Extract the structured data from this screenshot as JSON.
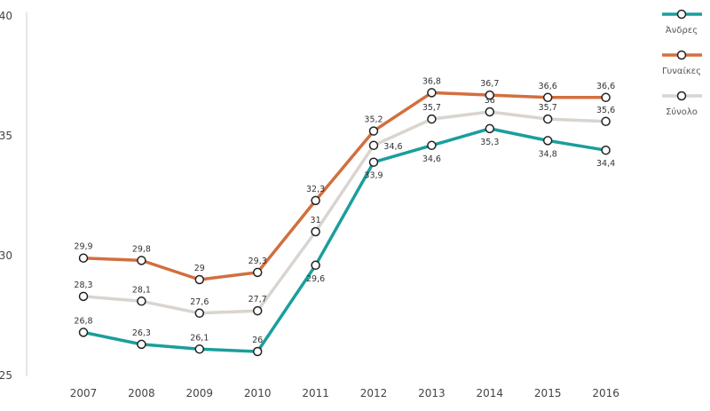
{
  "chart_data": {
    "type": "line",
    "categories": [
      "2007",
      "2008",
      "2009",
      "2010",
      "2011",
      "2012",
      "2013",
      "2014",
      "2015",
      "2016"
    ],
    "ylim": [
      25,
      40
    ],
    "yticks": [
      "25",
      "30",
      "35",
      "40"
    ],
    "grid": false,
    "legend_position": "top-right",
    "series": [
      {
        "name": "Άνδρες",
        "color": "#1a9e9c",
        "values": [
          26.8,
          26.3,
          26.1,
          26,
          29.6,
          33.9,
          34.6,
          35.3,
          34.8,
          34.4
        ],
        "labels": [
          "26,8",
          "26,3",
          "26,1",
          "26",
          "29,6",
          "33,9",
          "34,6",
          "35,3",
          "34,8",
          "34,4"
        ],
        "label_pos": [
          "above",
          "above",
          "above",
          "above",
          "below",
          "below",
          "below",
          "below",
          "below",
          "below"
        ]
      },
      {
        "name": "Γυναίκες",
        "color": "#d26f3f",
        "values": [
          29.9,
          29.8,
          29,
          29.3,
          32.3,
          35.2,
          36.8,
          36.7,
          36.6,
          36.6
        ],
        "labels": [
          "29,9",
          "29,8",
          "29",
          "29,3",
          "32,3",
          "35,2",
          "36,8",
          "36,7",
          "36,6",
          "36,6"
        ],
        "label_pos": [
          "above",
          "above",
          "above",
          "above",
          "above",
          "above",
          "above",
          "above",
          "above",
          "above"
        ]
      },
      {
        "name": "Σύνολο",
        "color": "#d9d4cf",
        "values": [
          28.3,
          28.1,
          27.6,
          27.7,
          31,
          34.6,
          35.7,
          36,
          35.7,
          35.6
        ],
        "labels": [
          "28,3",
          "28,1",
          "27,6",
          "27,7",
          "31",
          "34,6",
          "35,7",
          "36",
          "35,7",
          "35,6"
        ],
        "label_pos": [
          "above",
          "above",
          "above",
          "above",
          "above",
          "right",
          "above",
          "above",
          "above",
          "above"
        ]
      }
    ]
  }
}
